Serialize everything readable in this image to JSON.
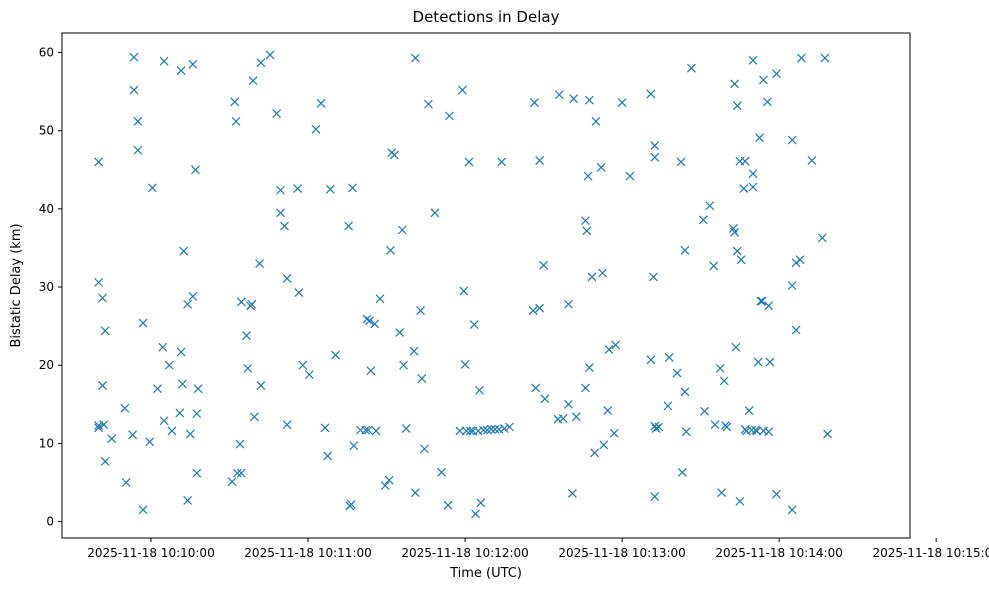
{
  "chart_data": {
    "type": "scatter",
    "title": "Detections in Delay",
    "xlabel": "Time (UTC)",
    "ylabel": "Bistatic Delay (km)",
    "x_unit": "seconds after 2025-11-18 10:00:00",
    "xlim": [
      566,
      890
    ],
    "ylim": [
      -2.1,
      62.5
    ],
    "x_ticks": [
      {
        "label": "2025-11-18 10:10:00",
        "value": 600
      },
      {
        "label": "2025-11-18 10:11:00",
        "value": 660
      },
      {
        "label": "2025-11-18 10:12:00",
        "value": 720
      },
      {
        "label": "2025-11-18 10:13:00",
        "value": 780
      },
      {
        "label": "2025-11-18 10:14:00",
        "value": 840
      },
      {
        "label": "2025-11-18 10:15:00",
        "value": 900
      }
    ],
    "y_ticks": [
      {
        "label": "0",
        "value": 0
      },
      {
        "label": "10",
        "value": 10
      },
      {
        "label": "20",
        "value": 20
      },
      {
        "label": "30",
        "value": 30
      },
      {
        "label": "40",
        "value": 40
      },
      {
        "label": "50",
        "value": 50
      },
      {
        "label": "60",
        "value": 60
      }
    ],
    "grid": false,
    "marker": "x",
    "color": "#1f77b4",
    "series": [
      {
        "points": [
          [
            580.0,
            46.0
          ],
          [
            580.0,
            30.6
          ],
          [
            580.0,
            12.3
          ],
          [
            580.0,
            12.0
          ],
          [
            581.5,
            28.6
          ],
          [
            581.5,
            17.4
          ],
          [
            582.0,
            12.4
          ],
          [
            582.5,
            24.4
          ],
          [
            582.5,
            7.7
          ],
          [
            585.0,
            10.6
          ],
          [
            590.0,
            14.5
          ],
          [
            590.5,
            5.0
          ],
          [
            593.0,
            11.1
          ],
          [
            593.5,
            59.4
          ],
          [
            593.5,
            55.2
          ],
          [
            595.0,
            51.2
          ],
          [
            595.0,
            47.5
          ],
          [
            597.0,
            25.4
          ],
          [
            597.0,
            1.5
          ],
          [
            599.5,
            10.2
          ],
          [
            600.5,
            42.7
          ],
          [
            602.5,
            17.0
          ],
          [
            604.5,
            22.3
          ],
          [
            605.0,
            12.9
          ],
          [
            607.0,
            20.0
          ],
          [
            608.0,
            11.6
          ],
          [
            611.0,
            13.9
          ],
          [
            611.5,
            21.7
          ],
          [
            612.5,
            34.6
          ],
          [
            612.0,
            17.6
          ],
          [
            605.0,
            58.9
          ],
          [
            611.5,
            57.7
          ],
          [
            614.0,
            27.8
          ],
          [
            614.0,
            2.7
          ],
          [
            615.0,
            11.2
          ],
          [
            616.0,
            28.8
          ],
          [
            617.5,
            13.8
          ],
          [
            617.5,
            6.2
          ],
          [
            618.0,
            17.0
          ],
          [
            617.0,
            45.0
          ],
          [
            616.0,
            58.5
          ],
          [
            631.0,
            5.1
          ],
          [
            633.0,
            6.2
          ],
          [
            634.5,
            6.2
          ],
          [
            634.5,
            28.1
          ],
          [
            634.0,
            9.9
          ],
          [
            636.5,
            23.8
          ],
          [
            637.0,
            19.6
          ],
          [
            638.5,
            27.8
          ],
          [
            638.0,
            27.6
          ],
          [
            639.5,
            13.4
          ],
          [
            639.0,
            56.4
          ],
          [
            641.5,
            33.0
          ],
          [
            642.0,
            17.4
          ],
          [
            642.0,
            58.7
          ],
          [
            645.5,
            59.7
          ],
          [
            648.0,
            52.2
          ],
          [
            649.5,
            39.5
          ],
          [
            649.5,
            42.4
          ],
          [
            651.0,
            37.8
          ],
          [
            652.0,
            31.1
          ],
          [
            652.0,
            12.4
          ],
          [
            656.0,
            42.6
          ],
          [
            656.5,
            29.3
          ],
          [
            658.0,
            20.0
          ],
          [
            660.5,
            18.8
          ],
          [
            663.0,
            50.2
          ],
          [
            665.0,
            53.5
          ],
          [
            666.5,
            12.0
          ],
          [
            667.5,
            8.4
          ],
          [
            668.5,
            42.5
          ],
          [
            670.5,
            21.3
          ],
          [
            632.0,
            53.7
          ],
          [
            632.5,
            51.2
          ],
          [
            675.5,
            37.8
          ],
          [
            676.0,
            2.0
          ],
          [
            676.5,
            2.2
          ],
          [
            677.0,
            42.7
          ],
          [
            677.5,
            9.7
          ],
          [
            680.0,
            11.7
          ],
          [
            682.0,
            11.7
          ],
          [
            682.5,
            25.9
          ],
          [
            683.0,
            11.7
          ],
          [
            683.5,
            25.7
          ],
          [
            684.0,
            19.3
          ],
          [
            685.5,
            25.3
          ],
          [
            686.0,
            11.6
          ],
          [
            687.5,
            28.5
          ],
          [
            689.5,
            4.6
          ],
          [
            691.0,
            5.3
          ],
          [
            691.5,
            34.7
          ],
          [
            692.0,
            47.2
          ],
          [
            693.0,
            46.9
          ],
          [
            695.0,
            24.2
          ],
          [
            696.0,
            37.3
          ],
          [
            696.5,
            20.0
          ],
          [
            697.5,
            11.9
          ],
          [
            700.5,
            21.8
          ],
          [
            701.0,
            59.3
          ],
          [
            701.0,
            3.7
          ],
          [
            703.0,
            27.0
          ],
          [
            703.5,
            18.3
          ],
          [
            704.5,
            9.3
          ],
          [
            706.0,
            53.4
          ],
          [
            708.5,
            39.5
          ],
          [
            711.0,
            6.3
          ],
          [
            713.5,
            2.1
          ],
          [
            714.0,
            51.9
          ],
          [
            719.0,
            55.2
          ],
          [
            719.5,
            29.5
          ],
          [
            720.0,
            20.1
          ],
          [
            721.5,
            46.0
          ],
          [
            722.0,
            11.6
          ],
          [
            718.0,
            11.6
          ],
          [
            723.5,
            25.2
          ],
          [
            724.0,
            1.0
          ],
          [
            725.5,
            16.8
          ],
          [
            726.0,
            2.4
          ],
          [
            720.5,
            11.6
          ],
          [
            723.0,
            11.6
          ],
          [
            725.0,
            11.6
          ],
          [
            727.0,
            11.7
          ],
          [
            728.5,
            11.7
          ],
          [
            730.0,
            11.8
          ],
          [
            731.5,
            11.8
          ],
          [
            733.0,
            11.8
          ],
          [
            734.0,
            46.0
          ],
          [
            735.0,
            11.9
          ],
          [
            737.0,
            12.1
          ],
          [
            746.5,
            53.6
          ],
          [
            746.0,
            27.0
          ],
          [
            747.0,
            17.1
          ],
          [
            748.5,
            46.2
          ],
          [
            748.5,
            27.3
          ],
          [
            750.0,
            32.8
          ],
          [
            750.5,
            15.7
          ],
          [
            755.5,
            13.1
          ],
          [
            756.0,
            54.6
          ],
          [
            757.5,
            13.2
          ],
          [
            759.5,
            27.8
          ],
          [
            759.5,
            15.0
          ],
          [
            761.0,
            3.6
          ],
          [
            761.5,
            54.1
          ],
          [
            762.5,
            13.4
          ],
          [
            766.0,
            38.5
          ],
          [
            766.0,
            17.1
          ],
          [
            766.5,
            37.2
          ],
          [
            767.0,
            44.2
          ],
          [
            767.5,
            53.9
          ],
          [
            767.5,
            19.7
          ],
          [
            768.5,
            31.3
          ],
          [
            769.5,
            8.8
          ],
          [
            770.0,
            51.2
          ],
          [
            772.0,
            45.3
          ],
          [
            772.5,
            31.8
          ],
          [
            773.0,
            9.8
          ],
          [
            774.5,
            14.2
          ],
          [
            775.0,
            22.0
          ],
          [
            777.5,
            22.6
          ],
          [
            777.0,
            11.3
          ],
          [
            780.0,
            53.6
          ],
          [
            783.0,
            44.2
          ],
          [
            791.0,
            20.7
          ],
          [
            792.0,
            31.3
          ],
          [
            791.0,
            54.7
          ],
          [
            792.5,
            48.1
          ],
          [
            792.5,
            46.6
          ],
          [
            792.5,
            3.2
          ],
          [
            792.5,
            12.2
          ],
          [
            793.0,
            11.9
          ],
          [
            794.0,
            12.1
          ],
          [
            797.5,
            14.8
          ],
          [
            798.0,
            21.0
          ],
          [
            801.0,
            19.0
          ],
          [
            802.5,
            46.0
          ],
          [
            803.0,
            6.3
          ],
          [
            804.0,
            34.7
          ],
          [
            804.0,
            16.6
          ],
          [
            804.5,
            11.5
          ],
          [
            806.5,
            58.0
          ],
          [
            811.5,
            14.1
          ],
          [
            811.0,
            38.6
          ],
          [
            813.5,
            40.4
          ],
          [
            815.0,
            32.7
          ],
          [
            815.5,
            12.4
          ],
          [
            817.5,
            19.6
          ],
          [
            818.0,
            3.7
          ],
          [
            819.0,
            18.0
          ],
          [
            819.5,
            12.3
          ],
          [
            820.0,
            12.1
          ],
          [
            822.5,
            37.5
          ],
          [
            823.0,
            37.0
          ],
          [
            823.5,
            22.3
          ],
          [
            823.0,
            56.0
          ],
          [
            824.0,
            53.2
          ],
          [
            824.0,
            34.6
          ],
          [
            825.0,
            46.1
          ],
          [
            825.0,
            2.6
          ],
          [
            825.5,
            33.5
          ],
          [
            826.5,
            42.6
          ],
          [
            827.0,
            46.1
          ],
          [
            827.0,
            11.8
          ],
          [
            827.5,
            11.6
          ],
          [
            828.5,
            14.2
          ],
          [
            829.5,
            11.7
          ],
          [
            830.0,
            59.0
          ],
          [
            830.0,
            44.5
          ],
          [
            830.0,
            42.8
          ],
          [
            831.0,
            11.7
          ],
          [
            831.5,
            11.6
          ],
          [
            832.0,
            20.4
          ],
          [
            832.5,
            49.1
          ],
          [
            833.0,
            28.2
          ],
          [
            833.5,
            28.2
          ],
          [
            834.0,
            56.5
          ],
          [
            834.0,
            11.6
          ],
          [
            835.5,
            53.7
          ],
          [
            836.0,
            27.6
          ],
          [
            836.0,
            11.5
          ],
          [
            836.5,
            20.4
          ],
          [
            839.0,
            57.3
          ],
          [
            839.0,
            3.5
          ],
          [
            845.0,
            48.8
          ],
          [
            845.0,
            30.2
          ],
          [
            845.0,
            1.5
          ],
          [
            846.5,
            33.1
          ],
          [
            846.5,
            24.5
          ],
          [
            848.0,
            33.5
          ],
          [
            848.5,
            59.3
          ],
          [
            852.5,
            46.2
          ],
          [
            856.5,
            36.3
          ],
          [
            857.5,
            59.3
          ],
          [
            858.5,
            11.2
          ]
        ]
      }
    ]
  }
}
